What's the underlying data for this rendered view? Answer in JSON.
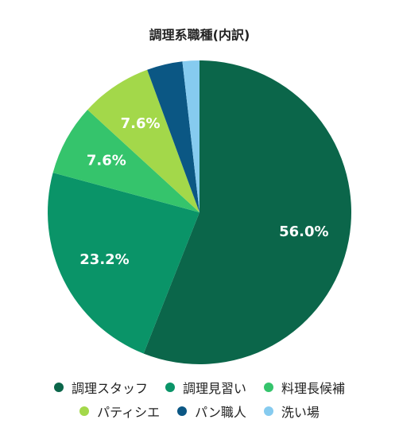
{
  "chart_data": {
    "type": "pie",
    "title": "調理系職種(内訳)",
    "categories": [
      "調理スタッフ",
      "調理見習い",
      "料理長候補",
      "パティシエ",
      "パン職人",
      "洗い場"
    ],
    "values": [
      56.0,
      23.2,
      7.6,
      7.6,
      3.8,
      1.8
    ],
    "value_labels": [
      "56.0%",
      "23.2%",
      "7.6%",
      "7.6%",
      null,
      null
    ],
    "colors": [
      "#0b664a",
      "#0a9468",
      "#35c46c",
      "#a3d84a",
      "#0b5784",
      "#86cbef"
    ],
    "legend": "bottom"
  }
}
